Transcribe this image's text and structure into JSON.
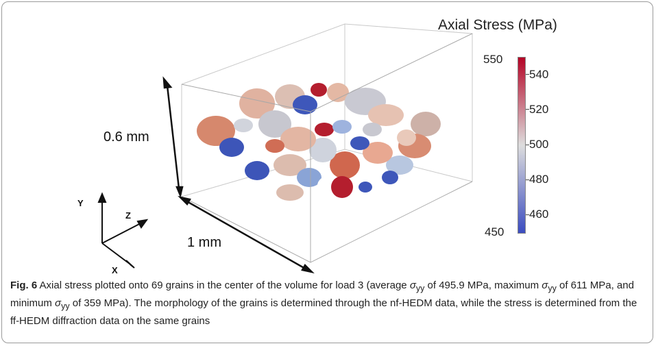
{
  "figure": {
    "colorbar": {
      "title": "Axial Stress (MPa)",
      "min": 450,
      "max": 550,
      "min_label": "450",
      "max_label": "550",
      "ticks": [
        {
          "value": 540,
          "label": "540"
        },
        {
          "value": 520,
          "label": "520"
        },
        {
          "value": 500,
          "label": "500"
        },
        {
          "value": 480,
          "label": "480"
        },
        {
          "value": 460,
          "label": "460"
        }
      ],
      "colors": {
        "low": "#3b4cc0",
        "mid": "#dddddd",
        "high": "#b40426"
      }
    },
    "dimensions": {
      "height_label": "0.6 mm",
      "width_label": "1 mm"
    },
    "axes": {
      "y": "Y",
      "z": "Z",
      "x": "X"
    }
  },
  "caption": {
    "label": "Fig. 6",
    "part1": " Axial stress plotted onto 69 grains in the center of the volume for load 3 (average ",
    "sym1": "σ",
    "sub1": "yy",
    "part2": " of 495.9 MPa, maximum ",
    "sym2": "σ",
    "sub2": "yy",
    "part3": " of 611 MPa, and minimum ",
    "sym3": "σ",
    "sub3": "yy",
    "part4": " of 359 MPa). The morphology of the grains is determined through the nf-HEDM data, while the stress is determined from the ff-HEDM diffraction data on the same grains"
  }
}
